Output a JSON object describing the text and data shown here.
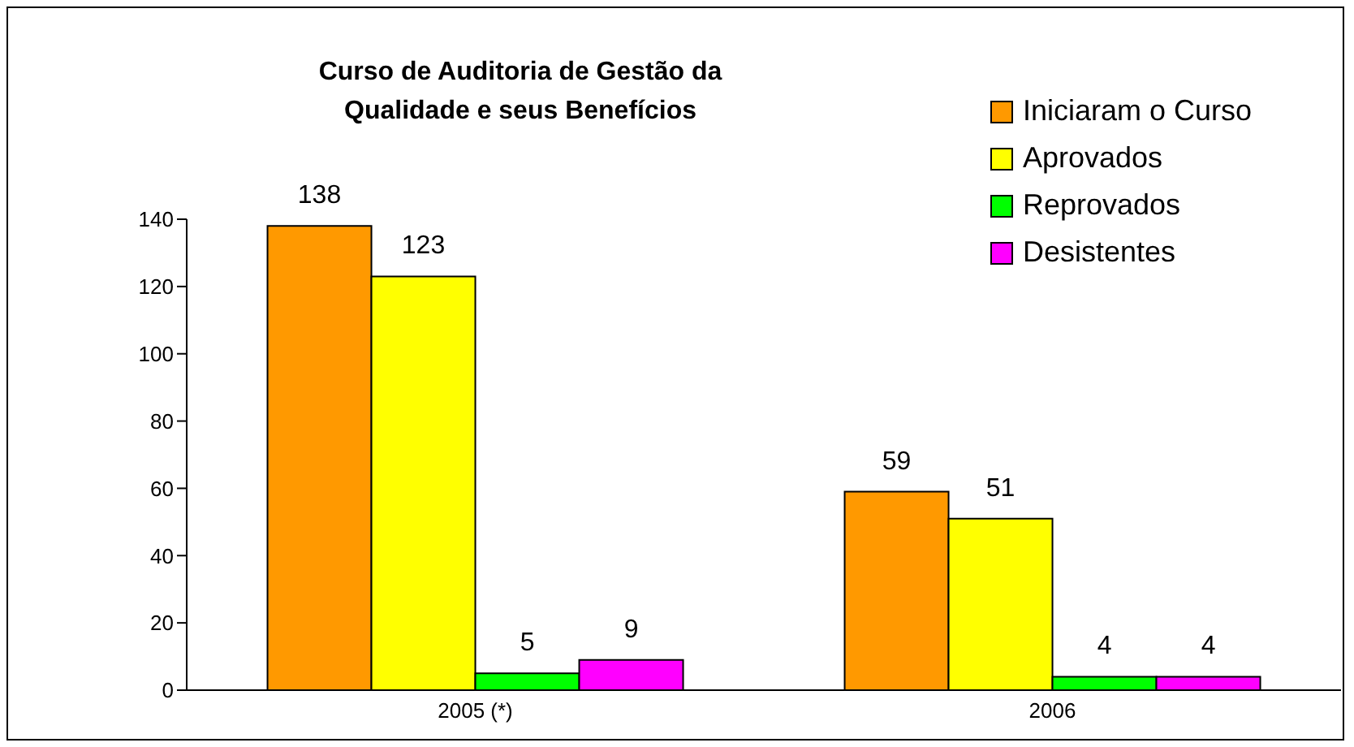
{
  "chart_data": {
    "type": "bar",
    "title": "Curso de Auditoria de Gestão da Qualidade e seus Benefícios",
    "categories": [
      "2005 (*)",
      "2006"
    ],
    "series": [
      {
        "name": "Iniciaram o Curso",
        "color": "#ff9900",
        "values": [
          138,
          59
        ]
      },
      {
        "name": "Aprovados",
        "color": "#ffff00",
        "values": [
          123,
          51
        ]
      },
      {
        "name": "Reprovados",
        "color": "#00ff00",
        "values": [
          5,
          4
        ]
      },
      {
        "name": "Desistentes",
        "color": "#ff00ff",
        "values": [
          9,
          4
        ]
      }
    ],
    "ylim": [
      0,
      140
    ],
    "yticks": [
      0,
      20,
      40,
      60,
      80,
      100,
      120,
      140
    ],
    "grid": false,
    "legend": "top right",
    "data_labels": true
  }
}
